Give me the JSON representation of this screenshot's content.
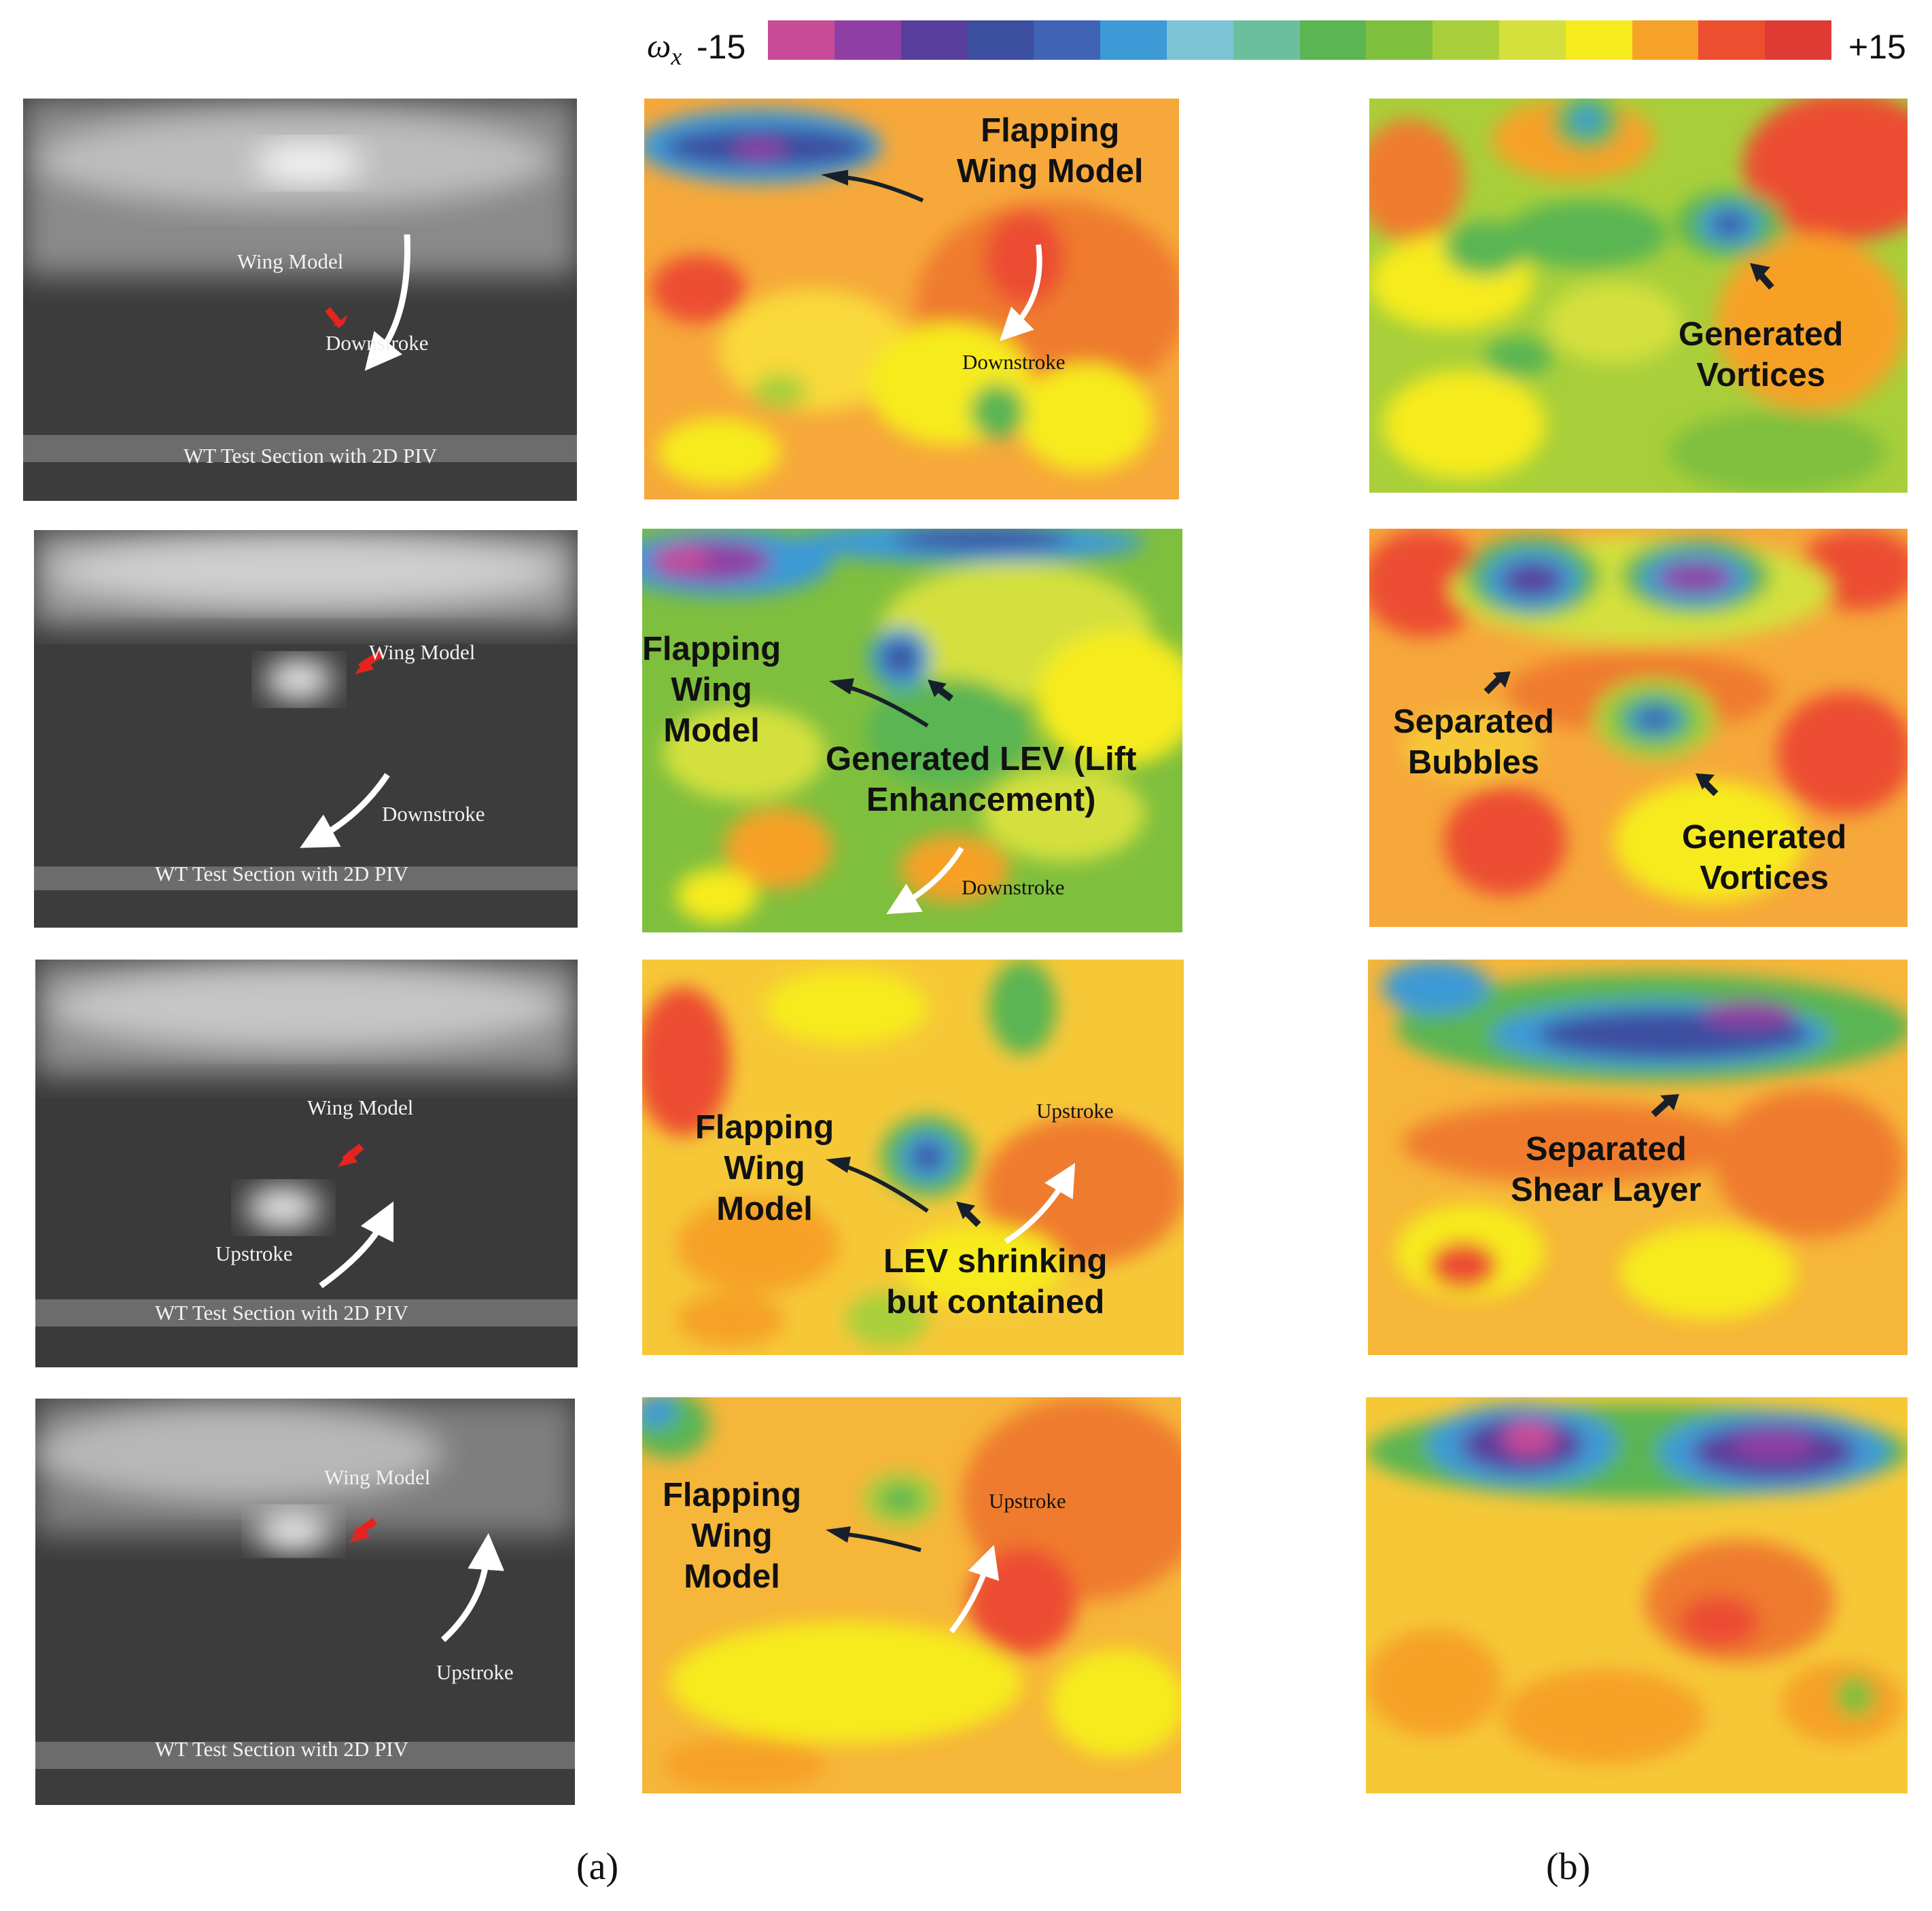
{
  "colorbar": {
    "symbol": "ωx",
    "min_label": "-15",
    "max_label": "+15",
    "colors": [
      "#c84b98",
      "#8f3fa3",
      "#583f9e",
      "#3c4ea0",
      "#3f63b5",
      "#3d9ad6",
      "#7cc4d6",
      "#6bbf9f",
      "#5ab552",
      "#7fbf3e",
      "#a8cf3a",
      "#d4e03c",
      "#f6eb1d",
      "#f6a128",
      "#ec4e30",
      "#e03a34"
    ]
  },
  "column_a": {
    "rows": [
      {
        "photo": {
          "wing_label": "Wing Model",
          "stroke_label": "Downstroke",
          "section_label": "WT Test Section with 2D PIV"
        },
        "piv": {
          "model_label": "Flapping\nWing Model",
          "stroke_label": "Downstroke",
          "annotation": ""
        }
      },
      {
        "photo": {
          "wing_label": "Wing Model",
          "stroke_label": "Downstroke",
          "section_label": "WT Test Section with 2D PIV"
        },
        "piv": {
          "model_label": "Flapping\nWing\nModel",
          "stroke_label": "Downstroke",
          "annotation": "Generated LEV (Lift\nEnhancement)"
        }
      },
      {
        "photo": {
          "wing_label": "Wing Model",
          "stroke_label": "Upstroke",
          "section_label": "WT Test Section with 2D PIV"
        },
        "piv": {
          "model_label": "Flapping\nWing\nModel",
          "stroke_label": "Upstroke",
          "annotation": "LEV shrinking\nbut contained"
        }
      },
      {
        "photo": {
          "wing_label": "Wing Model",
          "stroke_label": "Upstroke",
          "section_label": "WT Test Section with 2D PIV"
        },
        "piv": {
          "model_label": "Flapping\nWing\nModel",
          "stroke_label": "Upstroke",
          "annotation": ""
        }
      }
    ]
  },
  "column_b": {
    "rows": [
      {
        "annotation_1": "Generated\nVortices",
        "annotation_2": ""
      },
      {
        "annotation_1": "Separated\nBubbles",
        "annotation_2": "Generated\nVortices"
      },
      {
        "annotation_1": "Separated\nShear Layer",
        "annotation_2": ""
      },
      {
        "annotation_1": "",
        "annotation_2": ""
      }
    ]
  },
  "subfigure_labels": {
    "a": "(a)",
    "b": "(b)"
  }
}
